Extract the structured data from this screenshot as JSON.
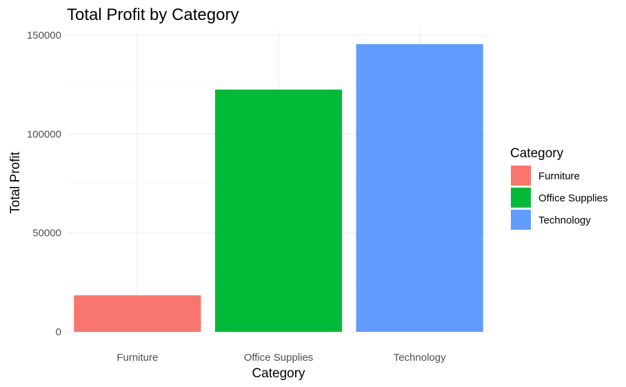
{
  "chart_data": {
    "type": "bar",
    "title": "Total Profit by Category",
    "xlabel": "Category",
    "ylabel": "Total Profit",
    "categories": [
      "Furniture",
      "Office Supplies",
      "Technology"
    ],
    "values": [
      18451,
      122491,
      145455
    ],
    "colors": [
      "#F8766D",
      "#00BA38",
      "#619CFF"
    ],
    "ylim": [
      0,
      150000
    ],
    "yticks": [
      0,
      50000,
      100000,
      150000
    ],
    "ytick_labels": [
      "0",
      "50000",
      "100000",
      "150000"
    ],
    "grid": true,
    "legend": {
      "title": "Category",
      "position": "right",
      "entries": [
        "Furniture",
        "Office Supplies",
        "Technology"
      ]
    }
  }
}
